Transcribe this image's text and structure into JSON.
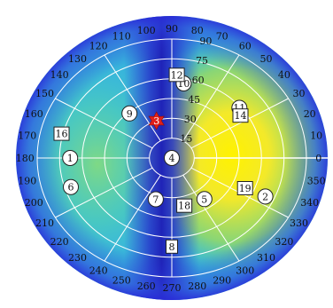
{
  "chart_data": {
    "type": "polar-heatmap",
    "title": "",
    "angle_unit": "deg",
    "angle_ticks": [
      0,
      10,
      20,
      30,
      40,
      50,
      60,
      70,
      80,
      90,
      100,
      110,
      120,
      130,
      140,
      150,
      160,
      170,
      180,
      190,
      200,
      210,
      220,
      230,
      240,
      250,
      260,
      270,
      280,
      290,
      300,
      310,
      320,
      330,
      340,
      350
    ],
    "radial_tick_labels": [
      "90",
      "75",
      "60",
      "45",
      "30",
      "15"
    ],
    "radial_tick_angle": 80,
    "grid": true,
    "colors": {
      "low": "#2a2ad9",
      "mid": "#3fd1c7",
      "high": "#ffe300",
      "grid": "#ffffff",
      "marker": "#e0201b",
      "label_text": "#111111",
      "tick_text": "#111111"
    },
    "points": [
      {
        "id": "1",
        "azimuth": 180,
        "zenith": 68,
        "shape": "circle"
      },
      {
        "id": "2",
        "azimuth": 335,
        "zenith": 69,
        "shape": "circle"
      },
      {
        "id": "3",
        "azimuth": 110,
        "zenith": 30,
        "shape": "star"
      },
      {
        "id": "4",
        "azimuth": 0,
        "zenith": 0,
        "shape": "circle"
      },
      {
        "id": "5",
        "azimuth": 305,
        "zenith": 38,
        "shape": "circle"
      },
      {
        "id": "6",
        "azimuth": 198,
        "zenith": 71,
        "shape": "circle"
      },
      {
        "id": "7",
        "azimuth": 251,
        "zenith": 33,
        "shape": "circle"
      },
      {
        "id": "8",
        "azimuth": 270,
        "zenith": 67,
        "shape": "square"
      },
      {
        "id": "9",
        "azimuth": 130,
        "zenith": 44,
        "shape": "circle"
      },
      {
        "id": "10",
        "azimuth": 82,
        "zenith": 57,
        "shape": "circle"
      },
      {
        "id": "11",
        "azimuth": 40,
        "zenith": 59,
        "shape": "circle"
      },
      {
        "id": "12",
        "azimuth": 87,
        "zenith": 63,
        "shape": "square"
      },
      {
        "id": "14",
        "azimuth": 35,
        "zenith": 56,
        "shape": "square"
      },
      {
        "id": "16",
        "azimuth": 166,
        "zenith": 76,
        "shape": "square"
      },
      {
        "id": "18",
        "azimuth": 283,
        "zenith": 37,
        "shape": "square"
      },
      {
        "id": "19",
        "azimuth": 335,
        "zenith": 54,
        "shape": "square"
      }
    ]
  }
}
